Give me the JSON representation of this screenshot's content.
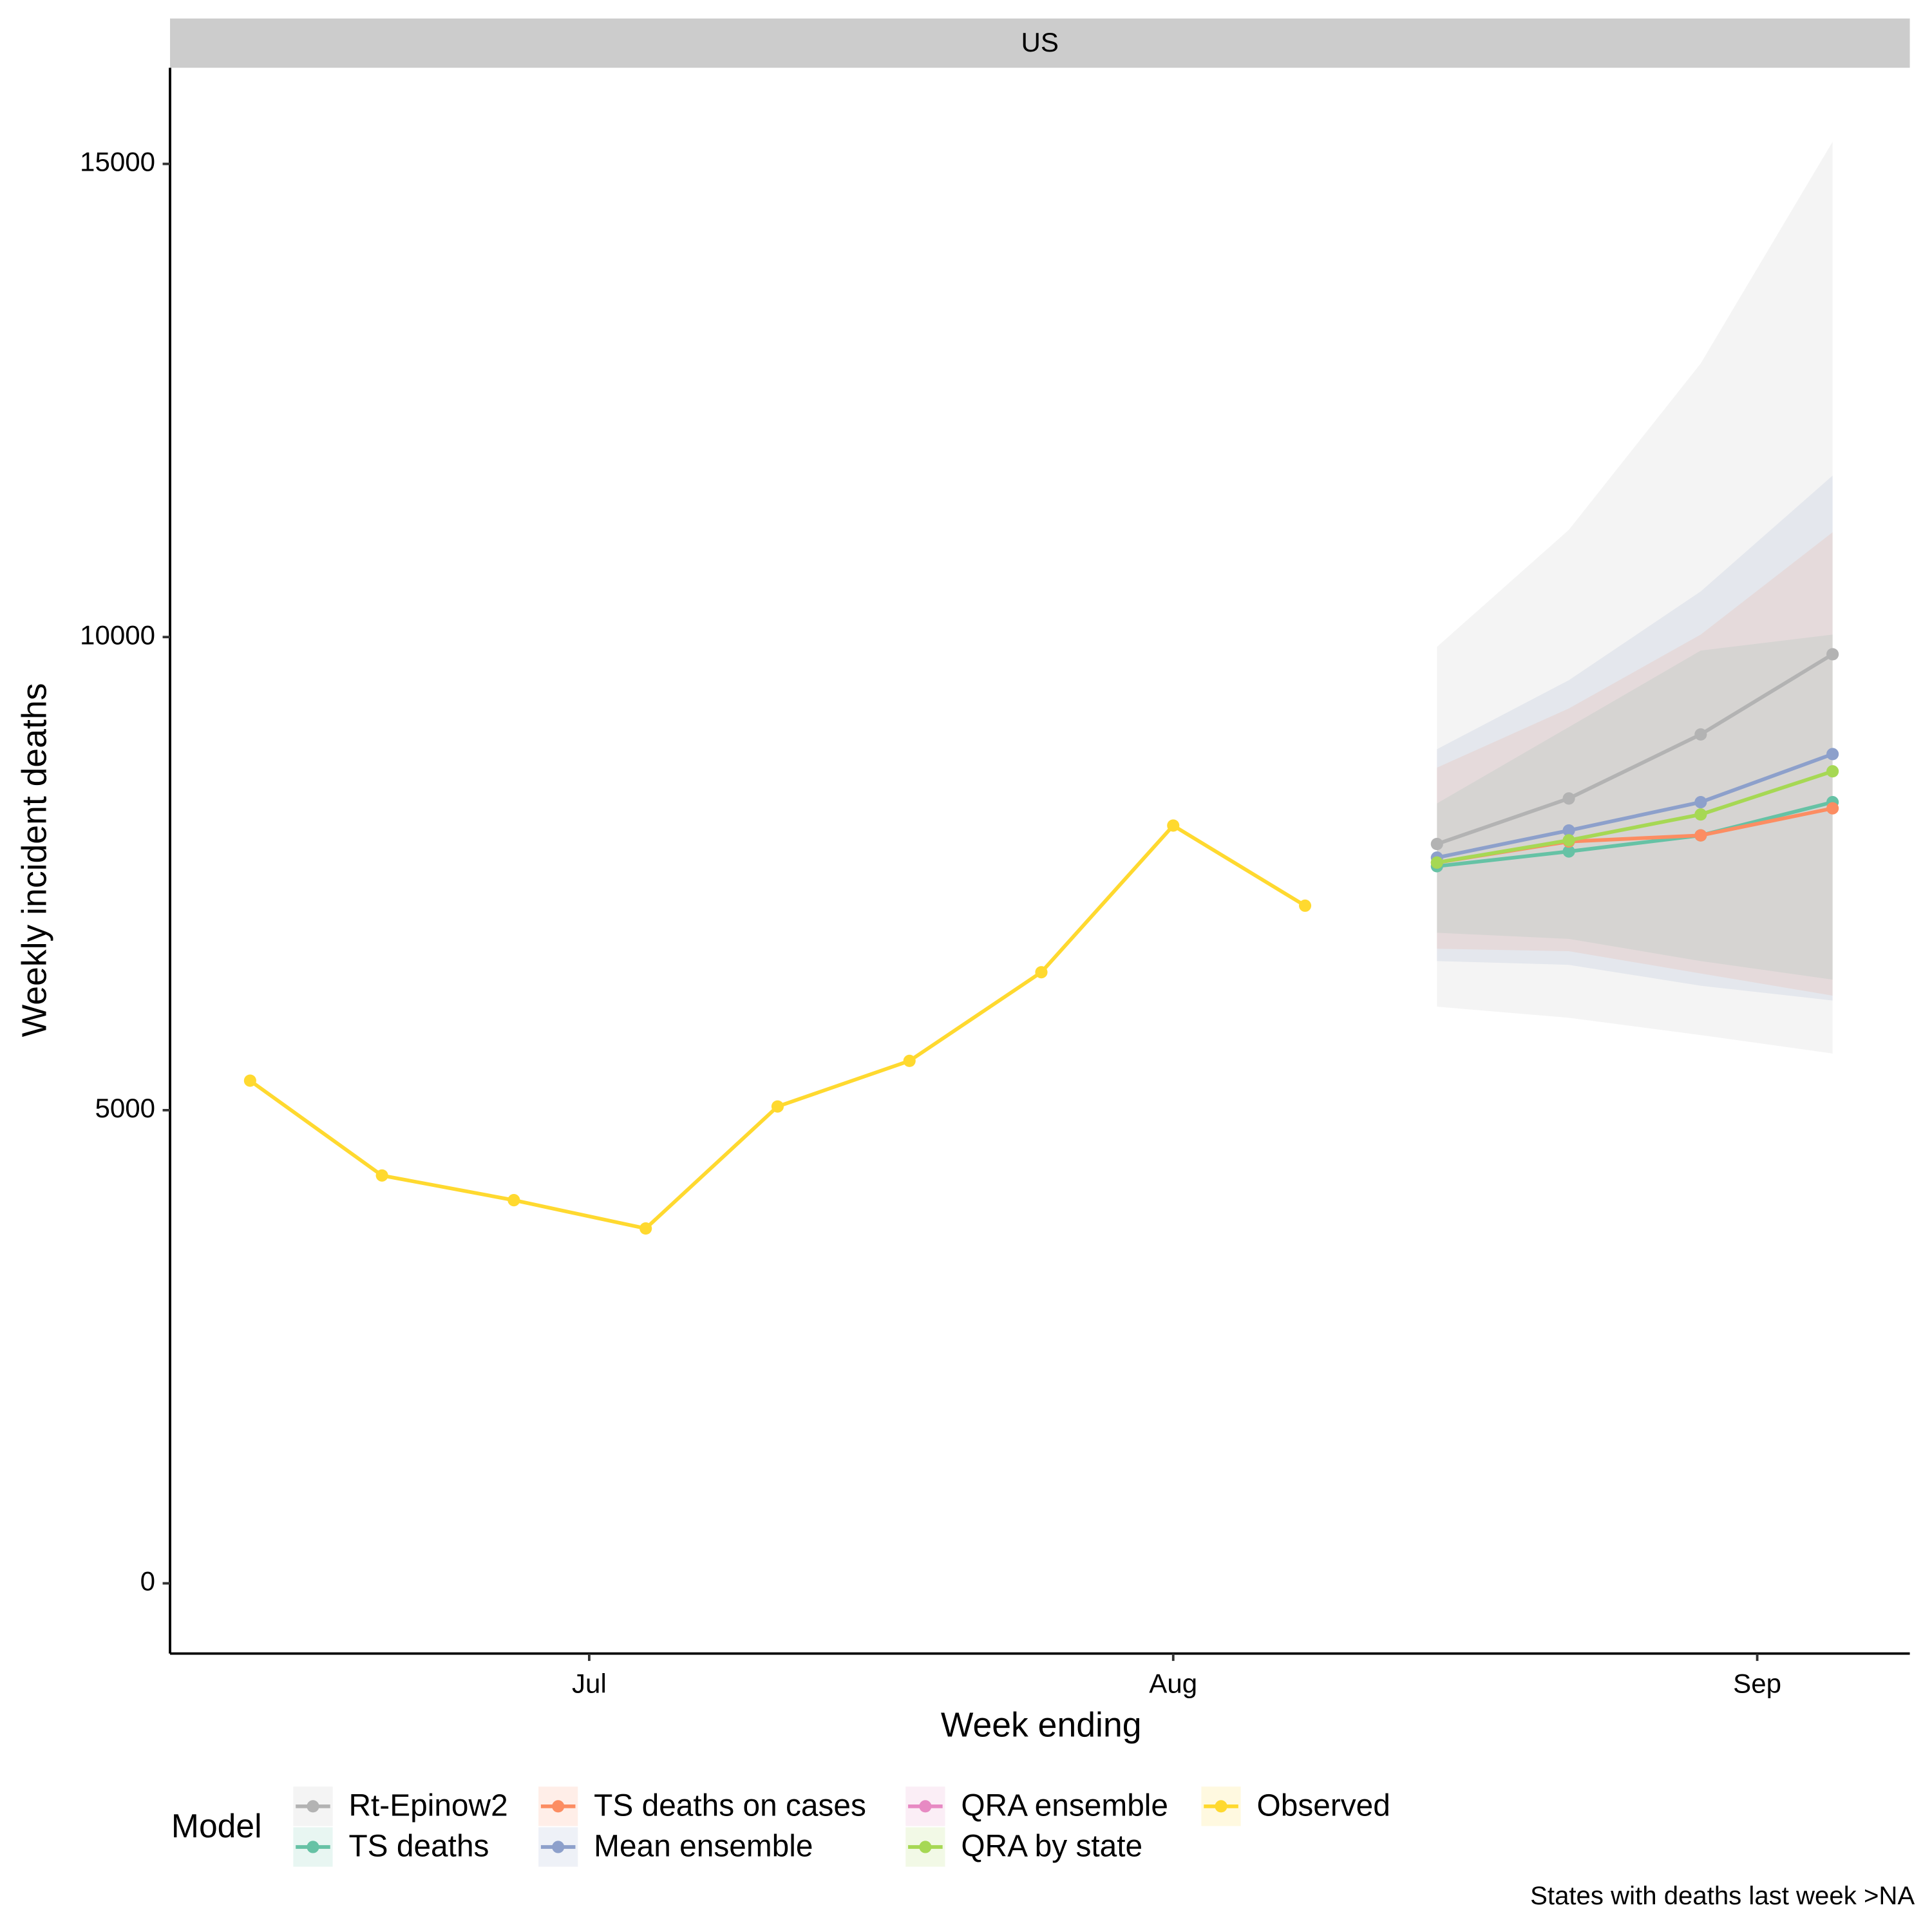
{
  "chart_data": {
    "type": "line",
    "strip": "US",
    "xlabel": "Week ending",
    "ylabel": "Weekly incident deaths",
    "legend_title": "Model",
    "caption": "States with deaths last week >NA",
    "xlim": [
      -4.25,
      88.1
    ],
    "xticks": [
      {
        "value": 18,
        "label": "Jul"
      },
      {
        "value": 49,
        "label": "Aug"
      },
      {
        "value": 80,
        "label": "Sep"
      }
    ],
    "ylim": [
      -742,
      16016
    ],
    "yticks": [
      0,
      5000,
      10000,
      15000
    ],
    "legend": "bottom",
    "series": [
      {
        "name": "Rt-Epinow2",
        "color": "#b3b3b3",
        "x": [
          63,
          70,
          77,
          84
        ],
        "values": [
          7813,
          8294,
          8971,
          9818
        ],
        "lower": [
          6094,
          5977,
          5794,
          5599
        ],
        "upper": [
          9896,
          11133,
          12891,
          15234
        ]
      },
      {
        "name": "TS deaths",
        "color": "#66c2a5",
        "x": [
          63,
          70,
          77,
          84
        ],
        "values": [
          7578,
          7734,
          7904,
          8255
        ],
        "lower": [
          6875,
          6810,
          6576,
          6380
        ],
        "upper": [
          8242,
          9049,
          9857,
          10026
        ]
      },
      {
        "name": "TS deaths on cases",
        "color": "#fc8d62",
        "x": [
          63,
          70,
          77,
          84
        ],
        "values": [
          7617,
          7839,
          7904,
          8190
        ],
        "lower": [
          6706,
          6680,
          6445,
          6211
        ],
        "upper": [
          8620,
          9245,
          10026,
          11107
        ]
      },
      {
        "name": "Mean ensemble",
        "color": "#8da0cb",
        "x": [
          63,
          70,
          77,
          84
        ],
        "values": [
          7669,
          7956,
          8255,
          8763
        ],
        "lower": [
          6576,
          6536,
          6315,
          6159
        ],
        "upper": [
          8815,
          9544,
          10482,
          11706
        ]
      },
      {
        "name": "QRA ensemble",
        "color": "#e78ac3",
        "x": [
          63,
          70,
          77,
          84
        ],
        "values": [
          null,
          null,
          null,
          null
        ]
      },
      {
        "name": "QRA by state",
        "color": "#a6d854",
        "x": [
          63,
          70,
          77,
          84
        ],
        "values": [
          7617,
          7852,
          8125,
          8581
        ]
      },
      {
        "name": "Observed",
        "color": "#ffd92f",
        "x": [
          0,
          7,
          14,
          21,
          28,
          35,
          42,
          49,
          56
        ],
        "values": [
          5312,
          4310,
          4049,
          3750,
          5039,
          5521,
          6458,
          8008,
          7161
        ]
      }
    ]
  }
}
